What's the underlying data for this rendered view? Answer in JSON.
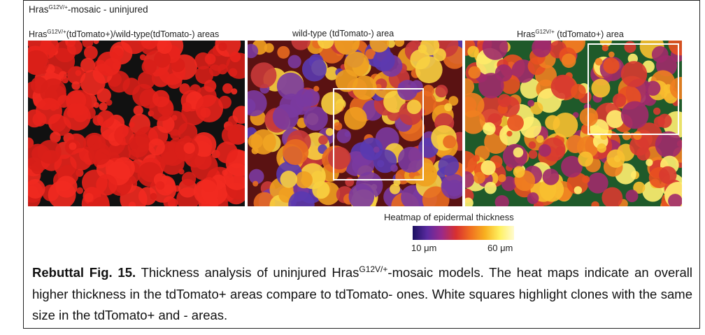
{
  "header": {
    "title": {
      "main": "Hras",
      "sup": "G12V/+",
      "rest": "-mosaic - uninjured"
    }
  },
  "panels": [
    {
      "title": {
        "main": "Hras",
        "sup": "G12V/+",
        "rest": "(tdTomato+)/wild-type(tdTomato-) areas"
      }
    },
    {
      "title": {
        "main": "wild-type (tdTomato-) area"
      }
    },
    {
      "title": {
        "main": "Hras",
        "sup": "G12V/+",
        "rest": " (tdTomato+) area"
      }
    }
  ],
  "colorbar": {
    "title": "Heatmap of epidermal thickness",
    "min_label": "10 μm",
    "max_label": "60 μm"
  },
  "caption": {
    "label": "Rebuttal Fig. 15.",
    "text_1": " Thickness analysis of uninjured Hras",
    "sup": "G12V/+",
    "text_2": "-mosaic models. The heat maps indicate an overall higher thickness in the tdTomato+ areas compare to tdTomato- ones. White squares highlight clones with the same size in the tdTomato+ and - areas."
  }
}
